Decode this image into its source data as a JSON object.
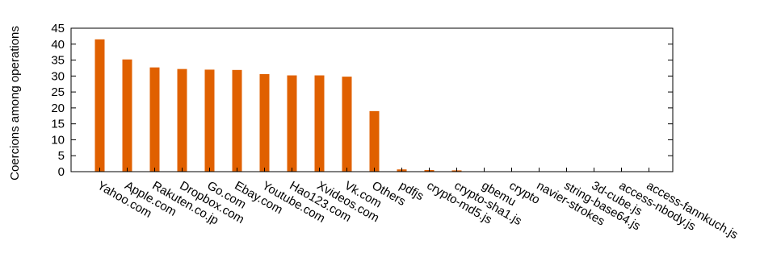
{
  "chart_data": {
    "type": "bar",
    "title": "",
    "xlabel": "",
    "ylabel": "Coercions among operations",
    "ylim": [
      0,
      45
    ],
    "yticks": [
      0,
      5,
      10,
      15,
      20,
      25,
      30,
      35,
      40,
      45
    ],
    "grid": false,
    "bar_color": "#e06000",
    "categories": [
      "Yahoo.com",
      "Apple.com",
      "Rakuten.co.jp",
      "Dropbox.com",
      "Go.com",
      "Ebay.com",
      "Youtube.com",
      "Hao123.com",
      "Xvideos.com",
      "Vk.com",
      "Others",
      "pdfjs",
      "crypto-md5.js",
      "crypto-sha1.js",
      "gbemu",
      "crypto",
      "navier-strokes",
      "string-base64.js",
      "3d-cube.js",
      "access-nbody.js",
      "access-fannkuch.js"
    ],
    "values": [
      41.5,
      35.2,
      32.7,
      32.2,
      32.0,
      31.9,
      30.6,
      30.2,
      30.2,
      29.8,
      19.0,
      0.7,
      0.5,
      0.4,
      0.1,
      0.1,
      0.05,
      0.05,
      0.05,
      0.05,
      0.05
    ]
  }
}
